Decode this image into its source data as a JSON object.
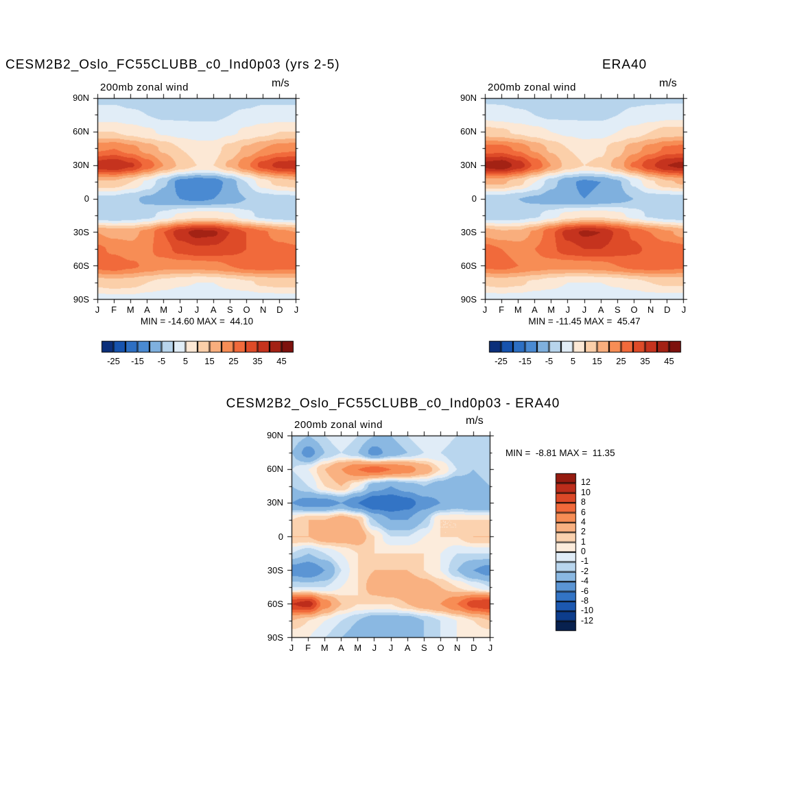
{
  "figure": {
    "background": "#ffffff"
  },
  "chart_data": [
    {
      "id": "model",
      "type": "heatmap",
      "title": "CESM2B2_Oslo_FC55CLUBB_c0_Ind0p03 (yrs 2-5)",
      "subtitle": "200mb zonal wind",
      "units": "m/s",
      "stats": "MIN = -14.60 MAX =  44.10",
      "x_ticklabels": [
        "J",
        "F",
        "M",
        "A",
        "M",
        "J",
        "J",
        "A",
        "S",
        "O",
        "N",
        "D",
        "J"
      ],
      "y_ticklabels": [
        "90N",
        "60N",
        "30N",
        "0",
        "30S",
        "60S",
        "90S"
      ],
      "y_range_deg": [
        90,
        -90
      ],
      "levels": [
        -25,
        -20,
        -15,
        -10,
        -5,
        0,
        5,
        10,
        15,
        20,
        25,
        30,
        35,
        40,
        45
      ],
      "colorbar_labels": [
        "-25",
        "-15",
        "-5",
        "5",
        "15",
        "25",
        "35",
        "45"
      ],
      "colors": [
        "#0b2f7a",
        "#1653ae",
        "#2d6fc3",
        "#4a8ad2",
        "#7fb0de",
        "#b7d4ec",
        "#e1edf7",
        "#fce8d5",
        "#fbcfa9",
        "#f9ae7d",
        "#f78d55",
        "#f16a3b",
        "#de4b28",
        "#c5331e",
        "#a32214",
        "#7d110d"
      ],
      "lats": [
        90,
        75,
        60,
        45,
        30,
        15,
        0,
        -15,
        -30,
        -45,
        -60,
        -75,
        -90
      ],
      "grid": [
        [
          -1,
          -1,
          -2,
          -2,
          -3,
          -3,
          -3,
          -3,
          -2,
          -2,
          -1,
          -1,
          -1
        ],
        [
          2,
          2,
          1,
          0,
          -1,
          -1,
          -1,
          -1,
          0,
          1,
          2,
          2,
          2
        ],
        [
          10,
          10,
          8,
          6,
          4,
          3,
          2,
          2,
          4,
          6,
          8,
          10,
          10
        ],
        [
          24,
          25,
          22,
          18,
          14,
          10,
          8,
          8,
          12,
          16,
          20,
          23,
          24
        ],
        [
          38,
          40,
          36,
          28,
          20,
          14,
          10,
          10,
          16,
          24,
          32,
          37,
          38
        ],
        [
          14,
          14,
          10,
          4,
          -4,
          -12,
          -14,
          -13,
          -8,
          0,
          8,
          12,
          14
        ],
        [
          -2,
          -2,
          -4,
          -6,
          -8,
          -10,
          -11,
          -10,
          -8,
          -5,
          -3,
          -2,
          -2
        ],
        [
          -4,
          -5,
          -4,
          -2,
          2,
          6,
          8,
          8,
          6,
          2,
          -2,
          -4,
          -4
        ],
        [
          20,
          18,
          18,
          22,
          30,
          38,
          42,
          41,
          35,
          30,
          26,
          22,
          20
        ],
        [
          26,
          24,
          22,
          24,
          28,
          32,
          34,
          34,
          32,
          30,
          28,
          27,
          26
        ],
        [
          27,
          28,
          26,
          24,
          22,
          22,
          22,
          23,
          25,
          27,
          28,
          27,
          27
        ],
        [
          12,
          13,
          12,
          10,
          8,
          6,
          5,
          5,
          7,
          9,
          11,
          12,
          12
        ],
        [
          2,
          3,
          3,
          2,
          1,
          0,
          0,
          0,
          1,
          1,
          2,
          2,
          2
        ]
      ]
    },
    {
      "id": "era40",
      "type": "heatmap",
      "title": "ERA40",
      "subtitle": "200mb zonal wind",
      "units": "m/s",
      "stats": "MIN = -11.45 MAX =  45.47",
      "x_ticklabels": [
        "J",
        "F",
        "M",
        "A",
        "M",
        "J",
        "J",
        "A",
        "S",
        "O",
        "N",
        "D",
        "J"
      ],
      "y_ticklabels": [
        "90N",
        "60N",
        "30N",
        "0",
        "30S",
        "60S",
        "90S"
      ],
      "y_range_deg": [
        90,
        -90
      ],
      "levels": [
        -25,
        -20,
        -15,
        -10,
        -5,
        0,
        5,
        10,
        15,
        20,
        25,
        30,
        35,
        40,
        45
      ],
      "colorbar_labels": [
        "-25",
        "-15",
        "-5",
        "5",
        "15",
        "25",
        "35",
        "45"
      ],
      "colors": [
        "#0b2f7a",
        "#1653ae",
        "#2d6fc3",
        "#4a8ad2",
        "#7fb0de",
        "#b7d4ec",
        "#e1edf7",
        "#fce8d5",
        "#fbcfa9",
        "#f9ae7d",
        "#f78d55",
        "#f16a3b",
        "#de4b28",
        "#c5331e",
        "#a32214",
        "#7d110d"
      ],
      "lats": [
        90,
        75,
        60,
        45,
        30,
        15,
        0,
        -15,
        -30,
        -45,
        -60,
        -75,
        -90
      ],
      "grid": [
        [
          -1,
          -1,
          -2,
          -2,
          -2,
          -3,
          -3,
          -3,
          -2,
          -1,
          -1,
          -1,
          -1
        ],
        [
          3,
          2,
          1,
          0,
          -1,
          -1,
          -1,
          -1,
          0,
          1,
          2,
          3,
          3
        ],
        [
          12,
          11,
          9,
          7,
          5,
          4,
          3,
          3,
          5,
          7,
          10,
          12,
          12
        ],
        [
          27,
          27,
          24,
          19,
          14,
          10,
          8,
          9,
          13,
          18,
          22,
          26,
          27
        ],
        [
          42,
          44,
          38,
          29,
          20,
          13,
          10,
          11,
          17,
          26,
          34,
          40,
          42
        ],
        [
          16,
          16,
          12,
          5,
          -3,
          -9,
          -11,
          -10,
          -6,
          1,
          9,
          14,
          16
        ],
        [
          -3,
          -3,
          -5,
          -6,
          -8,
          -9,
          -10,
          -9,
          -7,
          -5,
          -3,
          -3,
          -3
        ],
        [
          -4,
          -4,
          -3,
          -1,
          3,
          7,
          9,
          9,
          7,
          3,
          -1,
          -3,
          -4
        ],
        [
          18,
          16,
          16,
          21,
          29,
          37,
          41,
          40,
          34,
          29,
          25,
          21,
          18
        ],
        [
          27,
          25,
          23,
          25,
          29,
          33,
          35,
          35,
          33,
          31,
          29,
          28,
          27
        ],
        [
          26,
          27,
          25,
          23,
          22,
          22,
          22,
          23,
          25,
          27,
          28,
          27,
          26
        ],
        [
          11,
          12,
          11,
          9,
          7,
          5,
          5,
          5,
          6,
          8,
          10,
          11,
          11
        ],
        [
          2,
          2,
          2,
          1,
          1,
          0,
          0,
          0,
          1,
          1,
          2,
          2,
          2
        ]
      ]
    },
    {
      "id": "difference",
      "type": "heatmap",
      "title": "CESM2B2_Oslo_FC55CLUBB_c0_Ind0p03 - ERA40",
      "subtitle": "200mb zonal wind",
      "units": "m/s",
      "stats": "MIN =  -8.81 MAX =  11.35",
      "x_ticklabels": [
        "J",
        "F",
        "M",
        "A",
        "M",
        "J",
        "J",
        "A",
        "S",
        "O",
        "N",
        "D",
        "J"
      ],
      "y_ticklabels": [
        "90N",
        "60N",
        "30N",
        "0",
        "30S",
        "60S",
        "90S"
      ],
      "y_range_deg": [
        90,
        -90
      ],
      "levels": [
        -12,
        -10,
        -8,
        -6,
        -4,
        -2,
        -1,
        0,
        1,
        2,
        4,
        6,
        8,
        10,
        12
      ],
      "colorbar_labels": [
        "12",
        "10",
        "8",
        "6",
        "4",
        "2",
        "1",
        "0",
        "-1",
        "-2",
        "-4",
        "-6",
        "-8",
        "-10",
        "-12"
      ],
      "colors": [
        "#08214f",
        "#0d3d8c",
        "#1c58b0",
        "#3374c5",
        "#5b95d4",
        "#8ab8e2",
        "#b9d6ee",
        "#e0ecf7",
        "#fcecdc",
        "#fbd2af",
        "#f9b181",
        "#f78d55",
        "#f1693a",
        "#dc4827",
        "#bd2d1b",
        "#951b10"
      ],
      "lats": [
        90,
        75,
        60,
        45,
        30,
        15,
        0,
        -15,
        -30,
        -45,
        -60,
        -75,
        -90
      ],
      "grid": [
        [
          -1,
          -2,
          -1,
          0,
          -1,
          -2,
          -2,
          -1,
          0,
          0,
          -1,
          -1,
          -1
        ],
        [
          -2,
          -5,
          -2,
          -1,
          -2,
          -5,
          -3,
          -2,
          -1,
          -1,
          -2,
          -2,
          -2
        ],
        [
          -1,
          0,
          2,
          4,
          6,
          7,
          6,
          5,
          3,
          1,
          -1,
          -2,
          -1
        ],
        [
          -2,
          -1,
          1,
          2,
          0,
          -3,
          -4,
          -3,
          -2,
          -3,
          -4,
          -3,
          -2
        ],
        [
          -4,
          -5,
          -5,
          -4,
          -6,
          -8,
          -8,
          -7,
          -5,
          -4,
          -3,
          -4,
          -4
        ],
        [
          1,
          2,
          2,
          3,
          2,
          -2,
          -4,
          -4,
          -2,
          1,
          1,
          1,
          1
        ],
        [
          2,
          2,
          3,
          3,
          3,
          1,
          -1,
          -1,
          0,
          1,
          1,
          2,
          2
        ],
        [
          -1,
          -2,
          -1,
          0,
          1,
          1,
          1,
          1,
          1,
          0,
          -1,
          -1,
          -1
        ],
        [
          -5,
          -6,
          -4,
          -1,
          1,
          2,
          2,
          2,
          1,
          0,
          -2,
          -4,
          -5
        ],
        [
          -1,
          -1,
          -1,
          0,
          1,
          3,
          4,
          4,
          3,
          2,
          1,
          0,
          -1
        ],
        [
          10,
          11,
          5,
          2,
          1,
          1,
          1,
          2,
          3,
          4,
          6,
          9,
          10
        ],
        [
          2,
          1,
          0,
          -1,
          -2,
          -3,
          -3,
          -3,
          -2,
          -1,
          0,
          1,
          2
        ],
        [
          0,
          0,
          -1,
          -2,
          -3,
          -4,
          -4,
          -3,
          -2,
          -1,
          0,
          0,
          0
        ]
      ]
    }
  ]
}
